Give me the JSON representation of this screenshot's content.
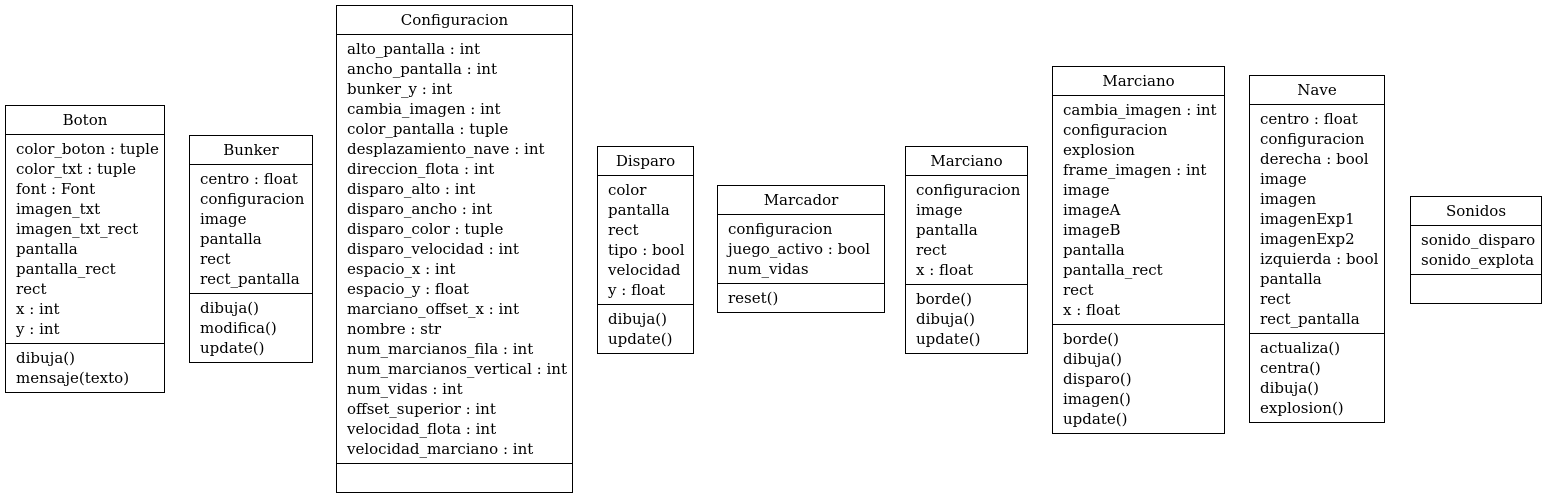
{
  "classes": [
    {
      "name": "Boton",
      "attributes": [
        "color_boton : tuple",
        "color_txt : tuple",
        "font : Font",
        "imagen_txt",
        "imagen_txt_rect",
        "pantalla",
        "pantalla_rect",
        "rect",
        "x : int",
        "y : int"
      ],
      "operations": [
        "dibuja()",
        "mensaje(texto)"
      ]
    },
    {
      "name": "Bunker",
      "attributes": [
        "centro : float",
        "configuracion",
        "image",
        "pantalla",
        "rect",
        "rect_pantalla"
      ],
      "operations": [
        "dibuja()",
        "modifica()",
        "update()"
      ]
    },
    {
      "name": "Configuracion",
      "attributes": [
        "alto_pantalla : int",
        "ancho_pantalla : int",
        "bunker_y : int",
        "cambia_imagen : int",
        "color_pantalla : tuple",
        "desplazamiento_nave : int",
        "direccion_flota : int",
        "disparo_alto : int",
        "disparo_ancho : int",
        "disparo_color : tuple",
        "disparo_velocidad : int",
        "espacio_x : int",
        "espacio_y : float",
        "marciano_offset_x : int",
        "nombre : str",
        "num_marcianos_fila : int",
        "num_marcianos_vertical : int",
        "num_vidas : int",
        "offset_superior : int",
        "velocidad_flota : int",
        "velocidad_marciano : int"
      ],
      "operations": []
    },
    {
      "name": "Disparo",
      "attributes": [
        "color",
        "pantalla",
        "rect",
        "tipo : bool",
        "velocidad",
        "y : float"
      ],
      "operations": [
        "dibuja()",
        "update()"
      ]
    },
    {
      "name": "Marcador",
      "attributes": [
        "configuracion",
        "juego_activo : bool",
        "num_vidas"
      ],
      "operations": [
        "reset()"
      ]
    },
    {
      "name": "Marciano",
      "attributes": [
        "configuracion",
        "image",
        "pantalla",
        "rect",
        "x : float"
      ],
      "operations": [
        "borde()",
        "dibuja()",
        "update()"
      ]
    },
    {
      "name": "Marciano",
      "attributes": [
        "cambia_imagen : int",
        "configuracion",
        "explosion",
        "frame_imagen : int",
        "image",
        "imageA",
        "imageB",
        "pantalla",
        "pantalla_rect",
        "rect",
        "x : float"
      ],
      "operations": [
        "borde()",
        "dibuja()",
        "disparo()",
        "imagen()",
        "update()"
      ]
    },
    {
      "name": "Nave",
      "attributes": [
        "centro : float",
        "configuracion",
        "derecha : bool",
        "image",
        "imagen",
        "imagenExp1",
        "imagenExp2",
        "izquierda : bool",
        "pantalla",
        "rect",
        "rect_pantalla"
      ],
      "operations": [
        "actualiza()",
        "centra()",
        "dibuja()",
        "explosion()"
      ]
    },
    {
      "name": "Sonidos",
      "attributes": [
        "sonido_disparo",
        "sonido_explota"
      ],
      "operations": []
    }
  ]
}
